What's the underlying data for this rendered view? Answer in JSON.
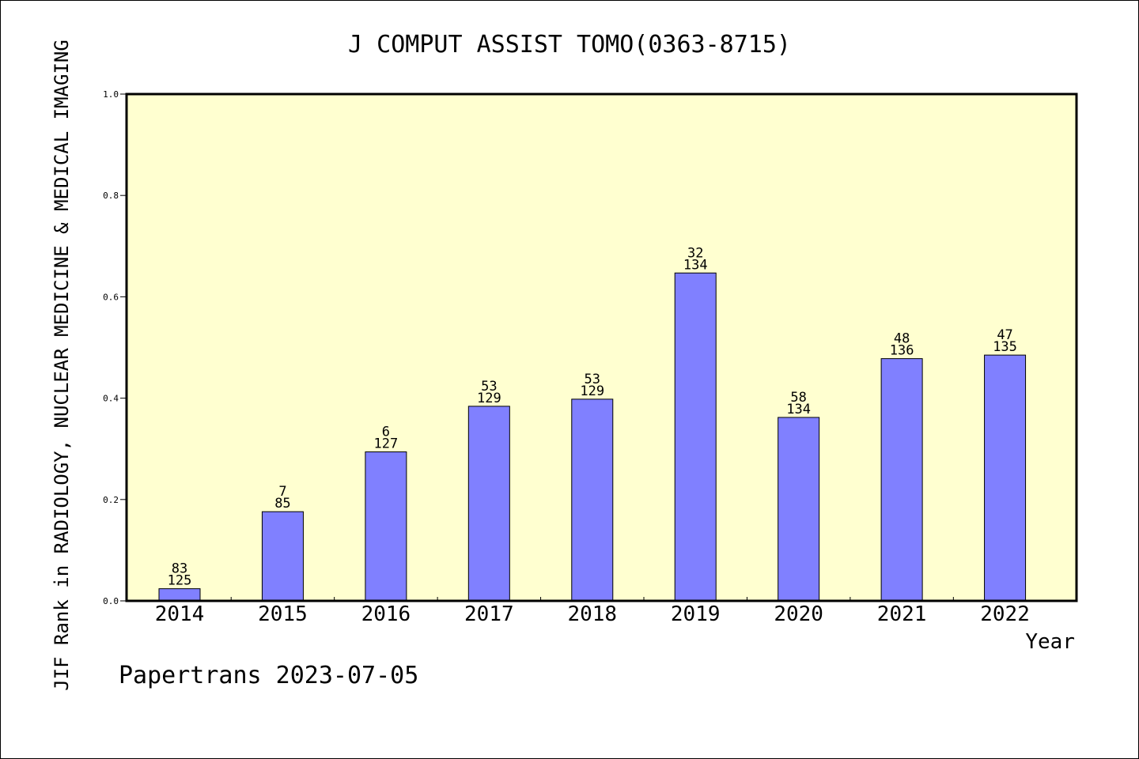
{
  "chart_data": {
    "type": "bar",
    "title": "J COMPUT ASSIST TOMO(0363-8715)",
    "xlabel": "Year",
    "ylabel": "JIF Rank in RADIOLOGY, NUCLEAR MEDICINE & MEDICAL IMAGING",
    "categories": [
      "2014",
      "2015",
      "2016",
      "2017",
      "2018",
      "2019",
      "2020",
      "2021",
      "2022"
    ],
    "values": [
      0.024,
      0.176,
      0.294,
      0.384,
      0.398,
      0.647,
      0.362,
      0.478,
      0.485
    ],
    "rank": [
      "83",
      "7",
      "6",
      "53",
      "53",
      "32",
      "58",
      "48",
      "47"
    ],
    "total": [
      "125",
      "85",
      "127",
      "129",
      "129",
      "134",
      "134",
      "136",
      "135"
    ],
    "ylim": [
      0,
      1
    ],
    "yticks": [
      "0.0",
      "0.2",
      "0.4",
      "0.6",
      "0.8",
      "1.0"
    ],
    "grid": false,
    "colors": {
      "bar": "#8080ff",
      "plot_background": "#ffffd0",
      "axis": "#000000"
    }
  },
  "footer": "Papertrans 2023-07-05"
}
